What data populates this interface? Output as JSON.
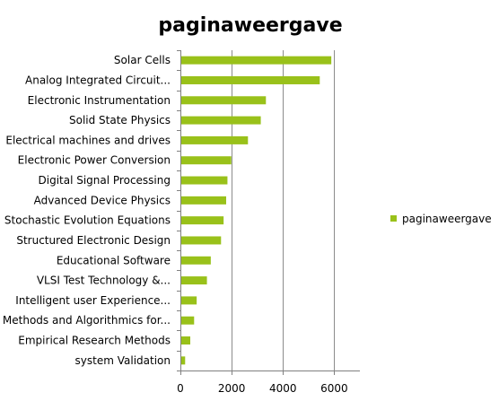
{
  "chart_data": {
    "type": "bar",
    "orientation": "horizontal",
    "title": "paginaweergave",
    "xlabel": "",
    "ylabel": "",
    "categories": [
      "Solar Cells",
      "Analog Integrated Circuit...",
      "Electronic Instrumentation",
      "Solid State Physics",
      "Electrical machines and drives",
      "Electronic Power Conversion",
      "Digital Signal Processing",
      "Advanced Device Physics",
      "Stochastic Evolution Equations",
      "Structured Electronic Design",
      "Educational Software",
      "VLSI Test Technology &...",
      "Intelligent user Experience...",
      "Methods and Algorithmics for...",
      "Empirical Research Methods",
      "system Validation"
    ],
    "series": [
      {
        "name": "paginaweergave",
        "values": [
          5850,
          5400,
          3300,
          3100,
          2600,
          1950,
          1800,
          1750,
          1650,
          1550,
          1150,
          1000,
          600,
          500,
          350,
          150
        ]
      }
    ],
    "xlim": [
      0,
      7000
    ],
    "xticks": [
      0,
      2000,
      4000,
      6000
    ],
    "gridlines": "vertical",
    "legend_position": "right",
    "colors": {
      "bar": "#99C11A",
      "grid": "#8c8c8c",
      "axis": "#808080"
    }
  }
}
